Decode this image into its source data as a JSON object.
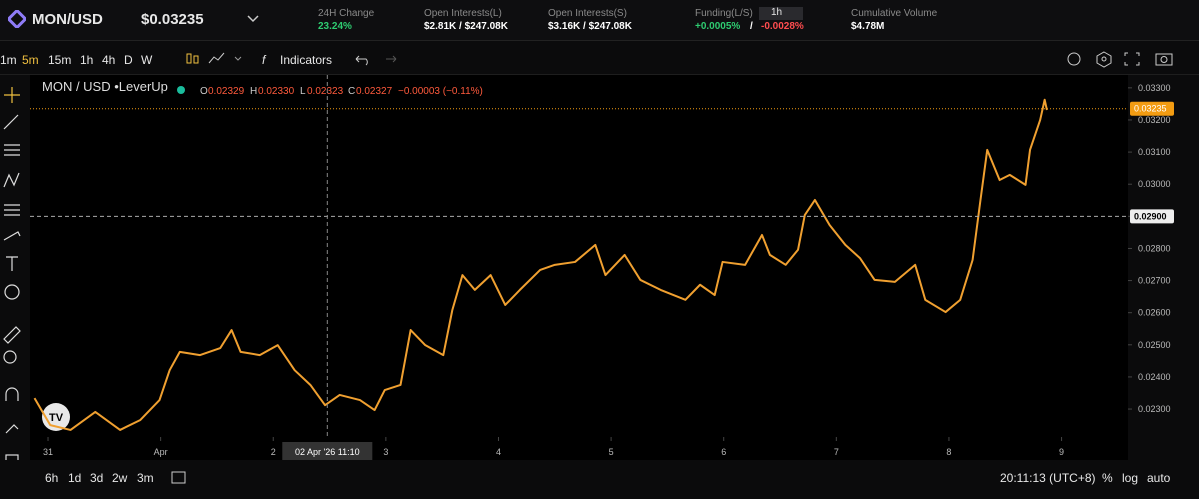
{
  "header": {
    "pair": "MON/USD",
    "price": "$0.03235",
    "stats": [
      {
        "label": "24H Change",
        "value": "23.24%"
      },
      {
        "label": "Open Interests(L)",
        "value": "$2.81K / $247.08K"
      },
      {
        "label": "Open Interests(S)",
        "value": "$3.16K / $247.08K"
      },
      {
        "label": "Funding(L/S)",
        "value_long": "+0.0005%",
        "sep": "/",
        "value_short": "-0.0028%",
        "period": "1h"
      },
      {
        "label": "Cumulative Volume",
        "value": "$4.78M"
      }
    ]
  },
  "toolbar": {
    "intervals": [
      "1m",
      "5m",
      "15m",
      "1h",
      "4h",
      "D",
      "W"
    ],
    "indicators": "Indicators"
  },
  "legend": {
    "title": "MON / USD •LeverUp",
    "ohlc": [
      {
        "k": "O",
        "v": "0.02329"
      },
      {
        "k": "H",
        "v": "0.02330"
      },
      {
        "k": "L",
        "v": "0.02323"
      },
      {
        "k": "C",
        "v": "0.02327"
      }
    ],
    "change": "−0.00003 (−0.11%)"
  },
  "bottom": {
    "ranges": [
      "6h",
      "1d",
      "3d",
      "2w",
      "3m"
    ],
    "clock": "20:11:13 (UTC+8)",
    "options": [
      "%",
      "log",
      "auto"
    ]
  },
  "chart_data": {
    "type": "line",
    "x": [
      -0.12,
      0.02,
      0.2,
      0.42,
      0.64,
      0.82,
      0.99,
      1.08,
      1.17,
      1.35,
      1.53,
      1.63,
      1.71,
      1.88,
      2.04,
      2.19,
      2.33,
      2.46,
      2.59,
      2.77,
      2.9,
      2.99,
      3.13,
      3.22,
      3.35,
      3.51,
      3.59,
      3.68,
      3.79,
      3.93,
      4.06,
      4.19,
      4.37,
      4.5,
      4.68,
      4.86,
      4.95,
      5.12,
      5.26,
      5.44,
      5.66,
      5.79,
      5.92,
      5.99,
      6.19,
      6.34,
      6.41,
      6.55,
      6.66,
      6.72,
      6.81,
      6.94,
      7.08,
      7.21,
      7.34,
      7.52,
      7.7,
      7.79,
      7.97,
      8.1,
      8.21,
      8.28,
      8.34,
      8.45,
      8.54,
      8.68,
      8.72,
      8.81,
      8.85,
      8.87
    ],
    "series": [
      {
        "name": "MON / USD",
        "color": "#f0a030",
        "values": [
          0.02334,
          0.0225,
          0.02235,
          0.02291,
          0.02235,
          0.02266,
          0.02328,
          0.02421,
          0.02478,
          0.02468,
          0.0249,
          0.02546,
          0.02478,
          0.02468,
          0.02499,
          0.02421,
          0.02375,
          0.02312,
          0.02344,
          0.02328,
          0.02297,
          0.02359,
          0.02375,
          0.02546,
          0.02499,
          0.02468,
          0.02608,
          0.02717,
          0.02671,
          0.02717,
          0.02624,
          0.02671,
          0.02733,
          0.02749,
          0.02758,
          0.02811,
          0.02717,
          0.0278,
          0.02702,
          0.02671,
          0.0264,
          0.02687,
          0.02655,
          0.02758,
          0.02749,
          0.02842,
          0.0278,
          0.02749,
          0.02796,
          0.02904,
          0.02951,
          0.02873,
          0.02811,
          0.0277,
          0.02702,
          0.02696,
          0.02749,
          0.0264,
          0.02602,
          0.0264,
          0.02764,
          0.02951,
          0.03107,
          0.03013,
          0.03029,
          0.02998,
          0.03107,
          0.032,
          0.03263,
          0.03231
        ]
      }
    ],
    "xlim": [
      -0.16,
      9.59
    ],
    "xticks": [
      {
        "value": 0,
        "label": "31"
      },
      {
        "value": 1,
        "label": "Apr"
      },
      {
        "value": 2,
        "label": "2"
      },
      {
        "value": 3,
        "label": "3"
      },
      {
        "value": 4,
        "label": "4"
      },
      {
        "value": 5,
        "label": "5"
      },
      {
        "value": 6,
        "label": "6"
      },
      {
        "value": 7,
        "label": "7"
      },
      {
        "value": 8,
        "label": "8"
      },
      {
        "value": 9,
        "label": "9"
      }
    ],
    "ylim": [
      0.02213,
      0.0334
    ],
    "yticks": [
      {
        "value": 0.023,
        "label": "0.02300"
      },
      {
        "value": 0.024,
        "label": "0.02400"
      },
      {
        "value": 0.025,
        "label": "0.02500"
      },
      {
        "value": 0.026,
        "label": "0.02600"
      },
      {
        "value": 0.027,
        "label": "0.02700"
      },
      {
        "value": 0.028,
        "label": "0.02800"
      },
      {
        "value": 0.029,
        "label": "0.02900"
      },
      {
        "value": 0.03,
        "label": "0.03000"
      },
      {
        "value": 0.031,
        "label": "0.03100"
      },
      {
        "value": 0.032,
        "label": "0.03200"
      },
      {
        "value": 0.033,
        "label": "0.03300"
      }
    ],
    "last_price": {
      "value": 0.03235,
      "label": "0.03235",
      "color": "#f39c12"
    },
    "crosshair_y": {
      "value": 0.029,
      "label": "0.02900"
    },
    "crosshair_x": {
      "value": 2.48,
      "label": "02 Apr '26   11:10"
    }
  }
}
